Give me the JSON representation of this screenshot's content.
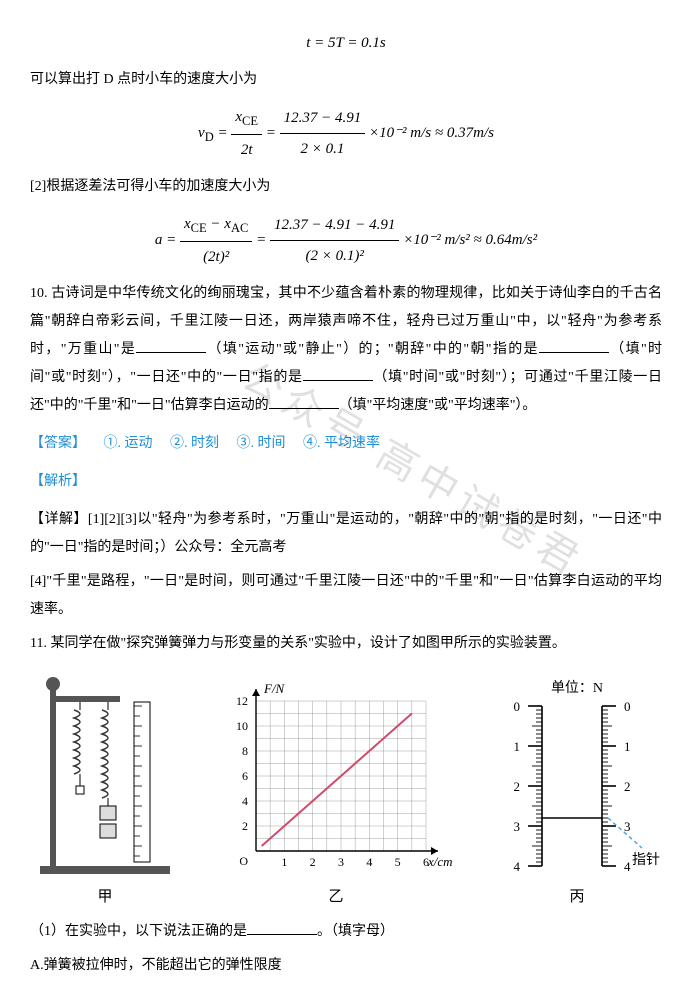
{
  "eq1": "t = 5T = 0.1s",
  "p1": "可以算出打 D 点时小车的速度大小为",
  "eq2_lhs": "v",
  "eq2_sub": "D",
  "eq2_frac1_num": "x",
  "eq2_frac1_num_sub": "CE",
  "eq2_frac1_den": "2t",
  "eq2_frac2_num": "12.37 − 4.91",
  "eq2_frac2_den": "2 × 0.1",
  "eq2_tail": "×10⁻² m/s ≈ 0.37m/s",
  "p2": "[2]根据逐差法可得小车的加速度大小为",
  "eq3_lhs": "a =",
  "eq3_frac1_num1": "x",
  "eq3_frac1_num1_sub": "CE",
  "eq3_frac1_num_mid": " − ",
  "eq3_frac1_num2": "x",
  "eq3_frac1_num2_sub": "AC",
  "eq3_frac1_den": "(2t)²",
  "eq3_frac2_num": "12.37 − 4.91 − 4.91",
  "eq3_frac2_den": "(2 × 0.1)²",
  "eq3_tail": "×10⁻² m/s² ≈ 0.64m/s²",
  "q10": "10.  古诗词是中华传统文化的绚丽瑰宝，其中不少蕴含着朴素的物理规律，比如关于诗仙李白的千古名篇\"朝辞白帝彩云间，千里江陵一日还，两岸猿声啼不住，轻舟已过万重山\"中，以\"轻舟\"为参考系时，\"万重山\"是",
  "q10b": "（填\"运动\"或\"静止\"）的；\"朝辞\"中的\"朝\"指的是",
  "q10c": "（填\"时间\"或\"时刻\"），\"一日还\"中的\"一日\"指的是",
  "q10d": "（填\"时间\"或\"时刻\"）；可通过\"千里江陵一日还\"中的\"千里\"和\"一日\"估算李白运动的",
  "q10e": "（填\"平均速度\"或\"平均速率\"）。",
  "ans_label": "【答案】",
  "ans1_n": "①.",
  "ans1": "运动",
  "ans2_n": "②.",
  "ans2": "时刻",
  "ans3_n": "③.",
  "ans3": "时间",
  "ans4_n": "④.",
  "ans4": "平均速率",
  "jiexi": "【解析】",
  "detail_label": "【详解】",
  "detail1": "[1][2][3]以\"轻舟\"为参考系时，\"万重山\"是运动的，\"朝辞\"中的\"朝\"指的是时刻，\"一日还\"中的\"一日\"指的是时间；）公众号：全元高考",
  "detail2": "[4]\"千里\"是路程，\"一日\"是时间，则可通过\"千里江陵一日还\"中的\"千里\"和\"一日\"估算李白运动的平均速率。",
  "q11": "11.  某同学在做\"探究弹簧弹力与形变量的关系\"实验中，设计了如图甲所示的实验装置。",
  "watermark": "公众号   高中试卷君",
  "fig_jia": "甲",
  "fig_yi": "乙",
  "fig_bing": "丙",
  "chart": {
    "ylabel": "F/N",
    "xlabel": "x/cm",
    "ylim": [
      0,
      12
    ],
    "xlim": [
      0,
      6
    ],
    "yticks": [
      0,
      2,
      4,
      6,
      8,
      10,
      12
    ],
    "xticks": [
      0,
      1,
      2,
      3,
      4,
      5,
      6
    ],
    "line_points": [
      [
        0.2,
        0.4
      ],
      [
        5.5,
        11
      ]
    ],
    "line_color": "#d04a6a",
    "grid_color": "#888888",
    "axis_color": "#000000",
    "bg": "#ffffff"
  },
  "ruler": {
    "unit_label": "单位：N",
    "pointer_label": "指针",
    "major_ticks": [
      0,
      1,
      2,
      3,
      4
    ],
    "pointer_value": 2.8,
    "pointer_color": "#4aa3d8",
    "tick_color": "#000000"
  },
  "q11_1": "（1）在实验中，以下说法正确的是",
  "q11_1b": "。（填字母）",
  "optA": "A.弹簧被拉伸时，不能超出它的弹性限度"
}
